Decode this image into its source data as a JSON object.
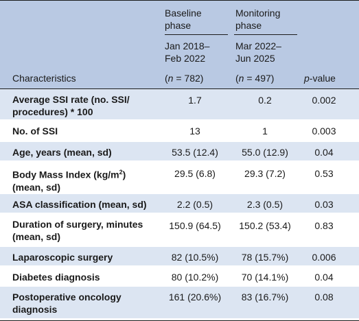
{
  "header": {
    "baseline_phase": "Baseline phase",
    "baseline_dates": "Jan 2018–Feb 2022",
    "baseline_n_prefix": "(",
    "baseline_n_var": "n",
    "baseline_n_suffix": " = 782)",
    "monitoring_phase": "Monitoring phase",
    "monitoring_dates": "Mar 2022–Jun 2025",
    "monitoring_n_prefix": "(",
    "monitoring_n_var": "n",
    "monitoring_n_suffix": " = 497)",
    "characteristics": "Characteristics",
    "p_var": "p",
    "p_suffix": "-value"
  },
  "rows": [
    {
      "char": "Average SSI rate (no. SSI/ procedures) * 100",
      "baseline": "1.7",
      "monitoring": "0.2",
      "p": "0.002"
    },
    {
      "char": "No. of SSI",
      "baseline": "13",
      "monitoring": "1",
      "p": "0.003"
    },
    {
      "char": "Age, years (mean, sd)",
      "baseline": "53.5 (12.4)",
      "monitoring": "55.0 (12.9)",
      "p": "0.04"
    },
    {
      "char_pre": "Body Mass Index (kg/m",
      "char_sup": "2",
      "char_post": ") (mean, sd)",
      "baseline": "29.5 (6.8)",
      "monitoring": "29.3 (7.2)",
      "p": "0.53"
    },
    {
      "char": "ASA classification (mean, sd)",
      "baseline": "2.2 (0.5)",
      "monitoring": "2.3 (0.5)",
      "p": "0.03"
    },
    {
      "char": "Duration of surgery, minutes (mean, sd)",
      "baseline": "150.9 (64.5)",
      "monitoring": "150.2 (53.4)",
      "p": "0.83"
    },
    {
      "char": "Laparoscopic surgery",
      "baseline": "82 (10.5%)",
      "monitoring": "78 (15.7%)",
      "p": "0.006"
    },
    {
      "char": "Diabetes diagnosis",
      "baseline": "80 (10.2%)",
      "monitoring": "70 (14.1%)",
      "p": "0.04"
    },
    {
      "char": "Postoperative oncology diagnosis",
      "baseline": "161 (20.6%)",
      "monitoring": "83 (16.7%)",
      "p": "0.08"
    }
  ]
}
